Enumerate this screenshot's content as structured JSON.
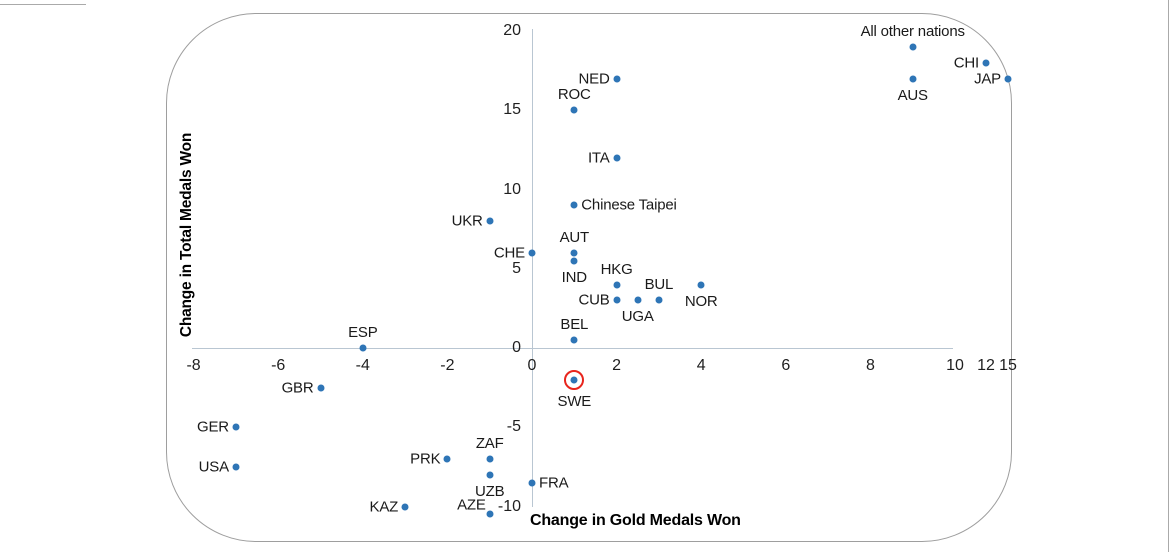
{
  "figure": {
    "background": "#ffffff",
    "border_color": "#9e9e9e"
  },
  "chart_data": {
    "type": "scatter",
    "title": "",
    "xlabel": "Change in Gold Medals Won",
    "ylabel": "Change in Total Medals Won",
    "xlim": [
      -8,
      15
    ],
    "ylim": [
      -10,
      20
    ],
    "x_ticks": [
      -8,
      -6,
      -4,
      -2,
      0,
      2,
      4,
      6,
      8,
      10,
      12,
      15
    ],
    "y_ticks": [
      20,
      15,
      10,
      5,
      0,
      -5,
      -10
    ],
    "axis_note": "x axis scale is compressed beyond +10 (ticks 12 and 15 squeezed at right edge)",
    "grid": false,
    "legend": "none",
    "marker_color": "#2e75b6",
    "highlight_color": "#e8251d",
    "axis_line_color": "#b9c6d2",
    "points": [
      {
        "label": "All other nations",
        "x": 9,
        "y": 19,
        "label_pos": "above"
      },
      {
        "label": "CHI",
        "x": 12,
        "y": 18,
        "label_pos": "left"
      },
      {
        "label": "JAP",
        "x": 15,
        "y": 17,
        "label_pos": "left"
      },
      {
        "label": "AUS",
        "x": 9,
        "y": 17,
        "label_pos": "below"
      },
      {
        "label": "NED",
        "x": 2,
        "y": 17,
        "label_pos": "left"
      },
      {
        "label": "ROC",
        "x": 1,
        "y": 15,
        "label_pos": "above"
      },
      {
        "label": "ITA",
        "x": 2,
        "y": 12,
        "label_pos": "left"
      },
      {
        "label": "Chinese Taipei",
        "x": 1,
        "y": 9,
        "label_pos": "right"
      },
      {
        "label": "UKR",
        "x": -1,
        "y": 8,
        "label_pos": "left"
      },
      {
        "label": "CHE",
        "x": 0,
        "y": 6,
        "label_pos": "left"
      },
      {
        "label": "AUT",
        "x": 1,
        "y": 6,
        "label_pos": "above"
      },
      {
        "label": "IND",
        "x": 1,
        "y": 5.5,
        "label_pos": "below"
      },
      {
        "label": "HKG",
        "x": 2,
        "y": 4,
        "label_pos": "above"
      },
      {
        "label": "CUB",
        "x": 2,
        "y": 3,
        "label_pos": "left"
      },
      {
        "label": "UGA",
        "x": 2.5,
        "y": 3,
        "label_pos": "below"
      },
      {
        "label": "BUL",
        "x": 3,
        "y": 3,
        "label_pos": "above"
      },
      {
        "label": "NOR",
        "x": 4,
        "y": 4,
        "label_pos": "below"
      },
      {
        "label": "BEL",
        "x": 1,
        "y": 0.5,
        "label_pos": "above"
      },
      {
        "label": "ESP",
        "x": -4,
        "y": 0,
        "label_pos": "above"
      },
      {
        "label": "SWE",
        "x": 1,
        "y": -2,
        "label_pos": "below",
        "highlighted": true
      },
      {
        "label": "GBR",
        "x": -5,
        "y": -2.5,
        "label_pos": "left"
      },
      {
        "label": "GER",
        "x": -7,
        "y": -5,
        "label_pos": "left"
      },
      {
        "label": "USA",
        "x": -7,
        "y": -7.5,
        "label_pos": "left"
      },
      {
        "label": "PRK",
        "x": -2,
        "y": -7,
        "label_pos": "left"
      },
      {
        "label": "ZAF",
        "x": -1,
        "y": -7,
        "label_pos": "above"
      },
      {
        "label": "UZB",
        "x": -1,
        "y": -8,
        "label_pos": "below"
      },
      {
        "label": "FRA",
        "x": 0,
        "y": -8.5,
        "label_pos": "right"
      },
      {
        "label": "KAZ",
        "x": -3,
        "y": -10,
        "label_pos": "left"
      },
      {
        "label": "AZE",
        "x": -1,
        "y": -10.5,
        "label_pos": "left-above"
      }
    ]
  }
}
